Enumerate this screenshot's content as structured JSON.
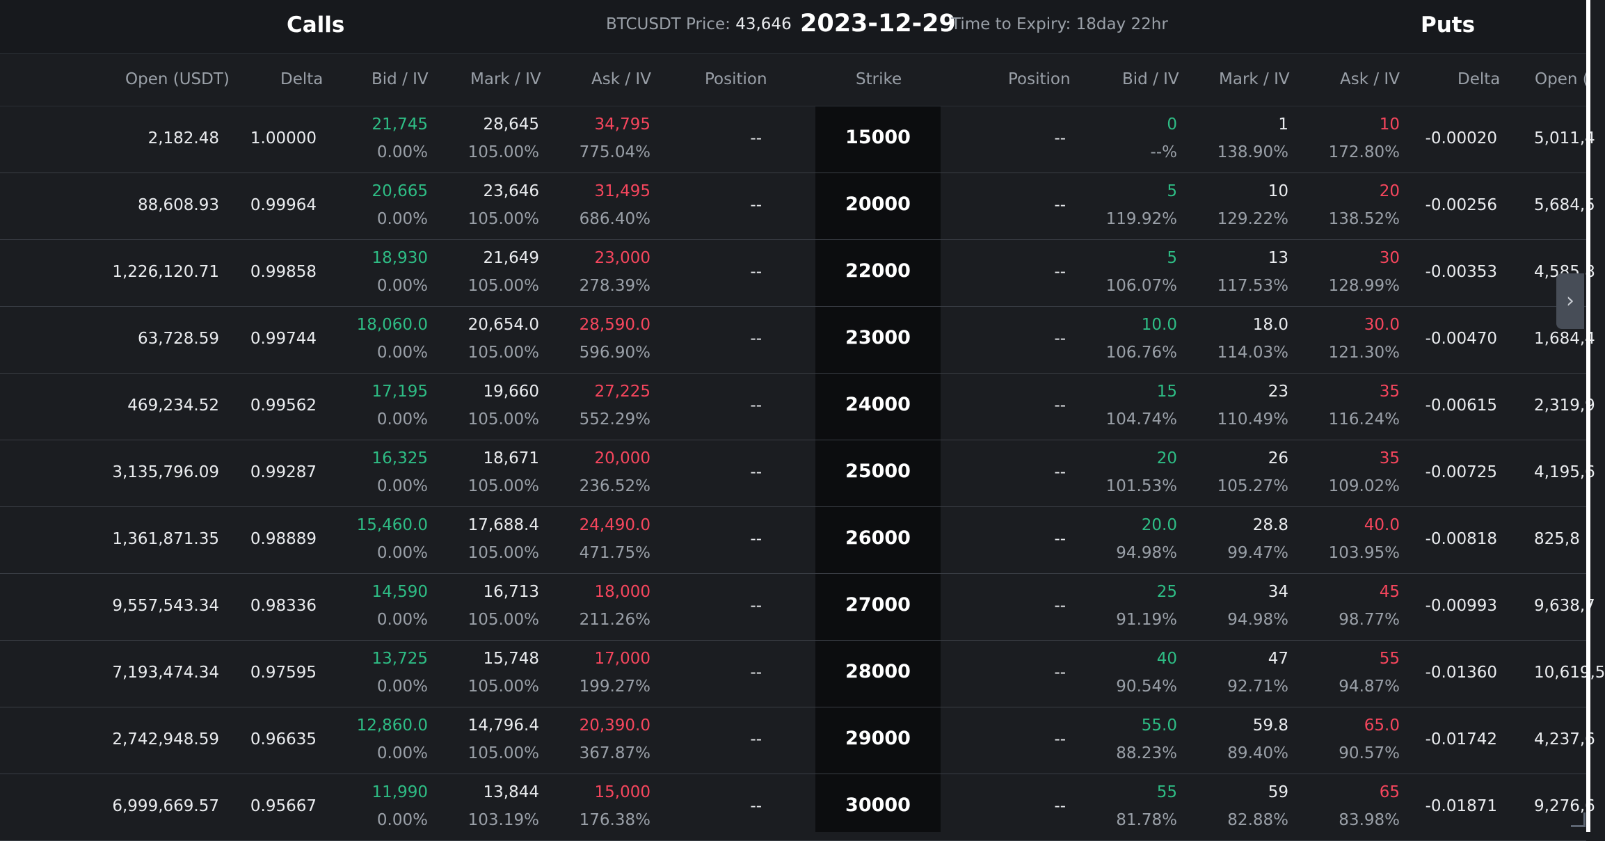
{
  "header": {
    "calls_title": "Calls",
    "price_label": "BTCUSDT Price:",
    "price_value": "43,646",
    "expiry_date": "2023-12-29",
    "time_to_expiry": "Time to Expiry: 18day 22hr",
    "puts_title": "Puts"
  },
  "columns": {
    "open_usdt": "Open (USDT)",
    "delta": "Delta",
    "bid_iv": "Bid / IV",
    "mark_iv": "Mark / IV",
    "ask_iv": "Ask / IV",
    "position": "Position",
    "strike": "Strike",
    "put_position": "Position",
    "put_bid_iv": "Bid / IV",
    "put_mark_iv": "Mark / IV",
    "put_ask_iv": "Ask / IV",
    "put_delta": "Delta",
    "put_open": "Open ("
  },
  "rows": [
    {
      "strike": "15000",
      "call_open": "2,182.48",
      "call_delta": "1.00000",
      "call_bid": "21,745",
      "call_bid_iv": "0.00%",
      "call_mark": "28,645",
      "call_mark_iv": "105.00%",
      "call_ask": "34,795",
      "call_ask_iv": "775.04%",
      "call_position": "--",
      "put_position": "--",
      "put_bid": "0",
      "put_bid_iv": "--%",
      "put_mark": "1",
      "put_mark_iv": "138.90%",
      "put_ask": "10",
      "put_ask_iv": "172.80%",
      "put_delta": "-0.00020",
      "put_open": "5,011,4"
    },
    {
      "strike": "20000",
      "call_open": "88,608.93",
      "call_delta": "0.99964",
      "call_bid": "20,665",
      "call_bid_iv": "0.00%",
      "call_mark": "23,646",
      "call_mark_iv": "105.00%",
      "call_ask": "31,495",
      "call_ask_iv": "686.40%",
      "call_position": "--",
      "put_position": "--",
      "put_bid": "5",
      "put_bid_iv": "119.92%",
      "put_mark": "10",
      "put_mark_iv": "129.22%",
      "put_ask": "20",
      "put_ask_iv": "138.52%",
      "put_delta": "-0.00256",
      "put_open": "5,684,5"
    },
    {
      "strike": "22000",
      "call_open": "1,226,120.71",
      "call_delta": "0.99858",
      "call_bid": "18,930",
      "call_bid_iv": "0.00%",
      "call_mark": "21,649",
      "call_mark_iv": "105.00%",
      "call_ask": "23,000",
      "call_ask_iv": "278.39%",
      "call_position": "--",
      "put_position": "--",
      "put_bid": "5",
      "put_bid_iv": "106.07%",
      "put_mark": "13",
      "put_mark_iv": "117.53%",
      "put_ask": "30",
      "put_ask_iv": "128.99%",
      "put_delta": "-0.00353",
      "put_open": "4,585,8"
    },
    {
      "strike": "23000",
      "call_open": "63,728.59",
      "call_delta": "0.99744",
      "call_bid": "18,060.0",
      "call_bid_iv": "0.00%",
      "call_mark": "20,654.0",
      "call_mark_iv": "105.00%",
      "call_ask": "28,590.0",
      "call_ask_iv": "596.90%",
      "call_position": "--",
      "put_position": "--",
      "put_bid": "10.0",
      "put_bid_iv": "106.76%",
      "put_mark": "18.0",
      "put_mark_iv": "114.03%",
      "put_ask": "30.0",
      "put_ask_iv": "121.30%",
      "put_delta": "-0.00470",
      "put_open": "1,684,4"
    },
    {
      "strike": "24000",
      "call_open": "469,234.52",
      "call_delta": "0.99562",
      "call_bid": "17,195",
      "call_bid_iv": "0.00%",
      "call_mark": "19,660",
      "call_mark_iv": "105.00%",
      "call_ask": "27,225",
      "call_ask_iv": "552.29%",
      "call_position": "--",
      "put_position": "--",
      "put_bid": "15",
      "put_bid_iv": "104.74%",
      "put_mark": "23",
      "put_mark_iv": "110.49%",
      "put_ask": "35",
      "put_ask_iv": "116.24%",
      "put_delta": "-0.00615",
      "put_open": "2,319,9"
    },
    {
      "strike": "25000",
      "call_open": "3,135,796.09",
      "call_delta": "0.99287",
      "call_bid": "16,325",
      "call_bid_iv": "0.00%",
      "call_mark": "18,671",
      "call_mark_iv": "105.00%",
      "call_ask": "20,000",
      "call_ask_iv": "236.52%",
      "call_position": "--",
      "put_position": "--",
      "put_bid": "20",
      "put_bid_iv": "101.53%",
      "put_mark": "26",
      "put_mark_iv": "105.27%",
      "put_ask": "35",
      "put_ask_iv": "109.02%",
      "put_delta": "-0.00725",
      "put_open": "4,195,6"
    },
    {
      "strike": "26000",
      "call_open": "1,361,871.35",
      "call_delta": "0.98889",
      "call_bid": "15,460.0",
      "call_bid_iv": "0.00%",
      "call_mark": "17,688.4",
      "call_mark_iv": "105.00%",
      "call_ask": "24,490.0",
      "call_ask_iv": "471.75%",
      "call_position": "--",
      "put_position": "--",
      "put_bid": "20.0",
      "put_bid_iv": "94.98%",
      "put_mark": "28.8",
      "put_mark_iv": "99.47%",
      "put_ask": "40.0",
      "put_ask_iv": "103.95%",
      "put_delta": "-0.00818",
      "put_open": "825,8"
    },
    {
      "strike": "27000",
      "call_open": "9,557,543.34",
      "call_delta": "0.98336",
      "call_bid": "14,590",
      "call_bid_iv": "0.00%",
      "call_mark": "16,713",
      "call_mark_iv": "105.00%",
      "call_ask": "18,000",
      "call_ask_iv": "211.26%",
      "call_position": "--",
      "put_position": "--",
      "put_bid": "25",
      "put_bid_iv": "91.19%",
      "put_mark": "34",
      "put_mark_iv": "94.98%",
      "put_ask": "45",
      "put_ask_iv": "98.77%",
      "put_delta": "-0.00993",
      "put_open": "9,638,7"
    },
    {
      "strike": "28000",
      "call_open": "7,193,474.34",
      "call_delta": "0.97595",
      "call_bid": "13,725",
      "call_bid_iv": "0.00%",
      "call_mark": "15,748",
      "call_mark_iv": "105.00%",
      "call_ask": "17,000",
      "call_ask_iv": "199.27%",
      "call_position": "--",
      "put_position": "--",
      "put_bid": "40",
      "put_bid_iv": "90.54%",
      "put_mark": "47",
      "put_mark_iv": "92.71%",
      "put_ask": "55",
      "put_ask_iv": "94.87%",
      "put_delta": "-0.01360",
      "put_open": "10,619,5"
    },
    {
      "strike": "29000",
      "call_open": "2,742,948.59",
      "call_delta": "0.96635",
      "call_bid": "12,860.0",
      "call_bid_iv": "0.00%",
      "call_mark": "14,796.4",
      "call_mark_iv": "105.00%",
      "call_ask": "20,390.0",
      "call_ask_iv": "367.87%",
      "call_position": "--",
      "put_position": "--",
      "put_bid": "55.0",
      "put_bid_iv": "88.23%",
      "put_mark": "59.8",
      "put_mark_iv": "89.40%",
      "put_ask": "65.0",
      "put_ask_iv": "90.57%",
      "put_delta": "-0.01742",
      "put_open": "4,237,6"
    },
    {
      "strike": "30000",
      "call_open": "6,999,669.57",
      "call_delta": "0.95667",
      "call_bid": "11,990",
      "call_bid_iv": "0.00%",
      "call_mark": "13,844",
      "call_mark_iv": "103.19%",
      "call_ask": "15,000",
      "call_ask_iv": "176.38%",
      "call_position": "--",
      "put_position": "--",
      "put_bid": "55",
      "put_bid_iv": "81.78%",
      "put_mark": "59",
      "put_mark_iv": "82.88%",
      "put_ask": "65",
      "put_ask_iv": "83.98%",
      "put_delta": "-0.01871",
      "put_open": "9,276,6"
    }
  ],
  "icons": {
    "scroll_right": "chevron-right-icon",
    "resize": "resize-corner-icon"
  },
  "colors": {
    "bid": "#2ebd85",
    "ask": "#f6465d",
    "strike_bg": "#0c0d0f"
  }
}
